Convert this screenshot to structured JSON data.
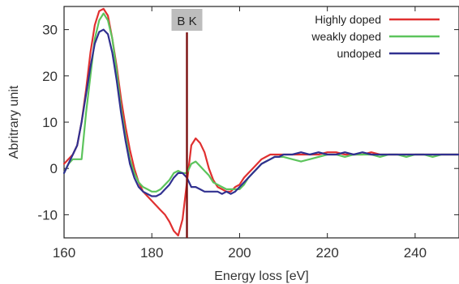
{
  "chart_data": {
    "type": "line",
    "title": "",
    "xlabel": "Energy loss [eV]",
    "ylabel": "Abritrary unit",
    "xlim": [
      160,
      250
    ],
    "ylim": [
      -15,
      35
    ],
    "xticks": [
      160,
      180,
      200,
      220,
      240
    ],
    "yticks": [
      -10,
      0,
      10,
      20,
      30
    ],
    "ytick_labels": [
      "-10",
      "0",
      "10",
      "20",
      "30"
    ],
    "grid": false,
    "legend_position": "top-right",
    "annotation": {
      "label": "B K",
      "x": 188
    },
    "series": [
      {
        "name": "Highly doped",
        "color": "#e03030",
        "x": [
          160,
          161,
          162,
          163,
          164,
          165,
          166,
          167,
          168,
          169,
          170,
          171,
          172,
          173,
          174,
          175,
          176,
          177,
          178,
          179,
          180,
          181,
          182,
          183,
          184,
          185,
          186,
          187,
          188,
          189,
          190,
          191,
          192,
          193,
          194,
          195,
          196,
          197,
          198,
          199,
          200,
          201,
          202,
          203,
          204,
          205,
          206,
          207,
          208,
          209,
          210,
          212,
          214,
          216,
          218,
          220,
          222,
          224,
          226,
          228,
          230,
          232,
          234,
          236,
          238,
          240,
          242,
          244,
          246,
          248,
          250
        ],
        "y": [
          1,
          2,
          3,
          5,
          10,
          17,
          25,
          31,
          34,
          34.5,
          33,
          28,
          22,
          15,
          9,
          4,
          0,
          -3,
          -5,
          -6,
          -7,
          -8,
          -9,
          -10,
          -11.5,
          -13.5,
          -14.5,
          -11,
          -3,
          5,
          6.5,
          5.5,
          3.5,
          0,
          -2.5,
          -4,
          -4.5,
          -5,
          -5,
          -4,
          -3.5,
          -2,
          -1,
          0,
          1,
          2,
          2.5,
          3,
          3,
          3,
          3,
          3,
          3,
          3,
          3,
          3.5,
          3.5,
          3,
          3,
          3,
          3.5,
          3,
          3,
          3,
          3,
          3,
          3,
          3,
          3,
          3,
          3
        ]
      },
      {
        "name": "weakly doped",
        "color": "#5cc45c",
        "x": [
          160,
          161,
          162,
          163,
          164,
          165,
          166,
          167,
          168,
          169,
          170,
          171,
          172,
          173,
          174,
          175,
          176,
          177,
          178,
          179,
          180,
          181,
          182,
          183,
          184,
          185,
          186,
          187,
          188,
          189,
          190,
          191,
          192,
          193,
          194,
          195,
          196,
          197,
          198,
          199,
          200,
          201,
          202,
          203,
          204,
          205,
          206,
          207,
          208,
          209,
          210,
          212,
          214,
          216,
          218,
          220,
          222,
          224,
          226,
          228,
          230,
          232,
          234,
          236,
          238,
          240,
          242,
          244,
          246,
          248,
          250
        ],
        "y": [
          -1,
          1,
          2,
          2,
          2,
          12,
          20,
          28,
          32,
          33.5,
          32,
          28,
          21,
          13,
          7,
          2,
          -1,
          -3,
          -4,
          -4.5,
          -5,
          -5,
          -4.5,
          -3.5,
          -2.5,
          -1,
          -0.5,
          -1,
          -1,
          1,
          1.5,
          0.5,
          -0.5,
          -1.5,
          -3,
          -3.5,
          -4,
          -4.5,
          -4.5,
          -4.5,
          -4.5,
          -3.5,
          -2,
          -1,
          0,
          1,
          1.5,
          2,
          2.5,
          2.5,
          2.5,
          2,
          1.5,
          2,
          2.5,
          3,
          3,
          2.5,
          3,
          3,
          3,
          2.5,
          3,
          3,
          2.5,
          3,
          3,
          2.5,
          3,
          3,
          3
        ]
      },
      {
        "name": "undoped",
        "color": "#303090",
        "x": [
          160,
          161,
          162,
          163,
          164,
          165,
          166,
          167,
          168,
          169,
          170,
          171,
          172,
          173,
          174,
          175,
          176,
          177,
          178,
          179,
          180,
          181,
          182,
          183,
          184,
          185,
          186,
          187,
          188,
          189,
          190,
          191,
          192,
          193,
          194,
          195,
          196,
          197,
          198,
          199,
          200,
          201,
          202,
          203,
          204,
          205,
          206,
          207,
          208,
          209,
          210,
          212,
          214,
          216,
          218,
          220,
          222,
          224,
          226,
          228,
          230,
          232,
          234,
          236,
          238,
          240,
          242,
          244,
          246,
          248,
          250
        ],
        "y": [
          -1,
          1,
          3,
          5,
          10,
          16,
          22,
          27,
          29.5,
          30,
          29,
          25,
          19,
          12,
          6,
          1,
          -2,
          -4,
          -5,
          -5.5,
          -6,
          -6,
          -5.5,
          -4.5,
          -3.5,
          -2,
          -1,
          -1,
          -2,
          -4,
          -4,
          -4.5,
          -5,
          -5,
          -5,
          -5,
          -5.5,
          -5,
          -5.5,
          -5,
          -4,
          -3,
          -2,
          -1,
          0,
          1,
          1.5,
          2,
          2.5,
          2.5,
          3,
          3,
          3.5,
          3,
          3.5,
          3,
          3,
          3.5,
          3,
          3.5,
          3,
          3,
          3,
          3,
          3,
          3,
          3,
          3,
          3,
          3,
          3
        ]
      }
    ]
  }
}
